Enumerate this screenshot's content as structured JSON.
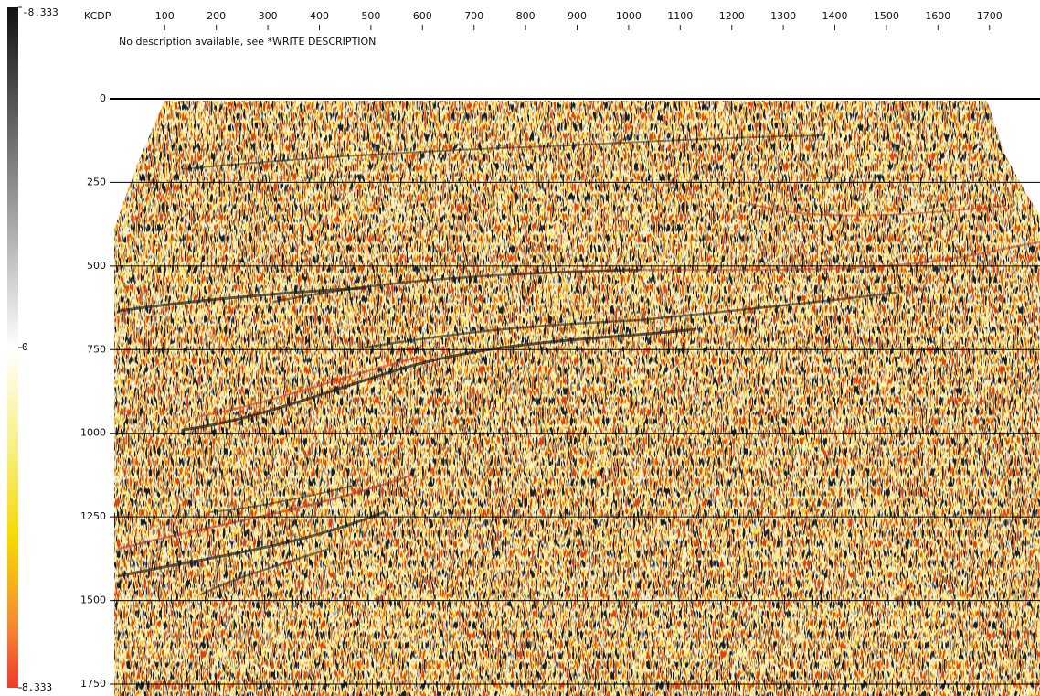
{
  "chart_data": {
    "type": "seismic",
    "xlabel": "KCDP",
    "subtitle": "No description available, see *WRITE DESCRIPTION",
    "xlim": [
      2,
      1798
    ],
    "xticks": [
      100,
      200,
      300,
      400,
      500,
      600,
      700,
      800,
      900,
      1000,
      1100,
      1200,
      1300,
      1400,
      1500,
      1600,
      1700
    ],
    "ylim": [
      0,
      1750
    ],
    "yticks": [
      0,
      250,
      500,
      750,
      1000,
      1250,
      1500,
      1750
    ],
    "grid": true,
    "clim": [
      -8.333,
      8.333
    ],
    "cticks": [
      -8.333,
      0,
      8.333
    ]
  }
}
